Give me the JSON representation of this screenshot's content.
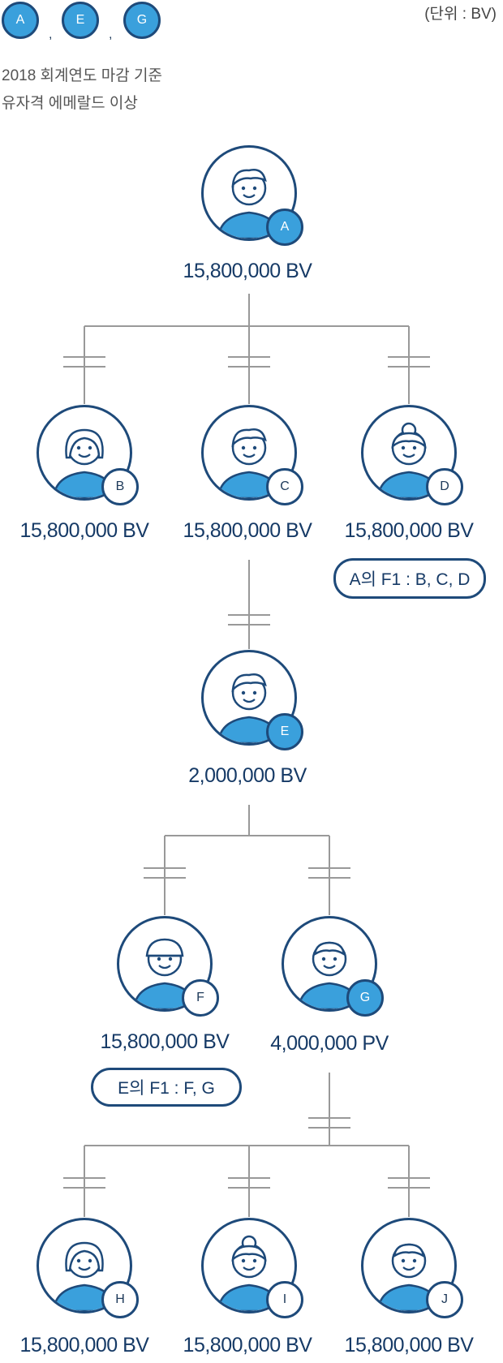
{
  "header": {
    "qualifiers": [
      "A",
      "E",
      "G"
    ],
    "separator": ",",
    "unit": "(단위 : BV)",
    "note_line1": "2018 회계연도 마감 기준",
    "note_line2": "유자격 에메랄드 이상"
  },
  "nodes": {
    "A": {
      "label": "A",
      "value": "15,800,000 BV",
      "highlight": true
    },
    "B": {
      "label": "B",
      "value": "15,800,000 BV",
      "highlight": false
    },
    "C": {
      "label": "C",
      "value": "15,800,000 BV",
      "highlight": false
    },
    "D": {
      "label": "D",
      "value": "15,800,000 BV",
      "highlight": false
    },
    "E": {
      "label": "E",
      "value": "2,000,000 BV",
      "highlight": true
    },
    "F": {
      "label": "F",
      "value": "15,800,000 BV",
      "highlight": false
    },
    "G": {
      "label": "G",
      "value": "4,000,000 PV",
      "highlight": true
    },
    "H": {
      "label": "H",
      "value": "15,800,000 BV",
      "highlight": false
    },
    "I": {
      "label": "I",
      "value": "15,800,000 BV",
      "highlight": false
    },
    "J": {
      "label": "J",
      "value": "15,800,000 BV",
      "highlight": false
    }
  },
  "notes": {
    "a_f1": "A의 F1 : B, C, D",
    "e_f1": "E의 F1 : F, G"
  },
  "colors": {
    "navy": "#1e4a7a",
    "accent": "#3aa0dc",
    "line": "#999999",
    "text": "#163a66"
  }
}
